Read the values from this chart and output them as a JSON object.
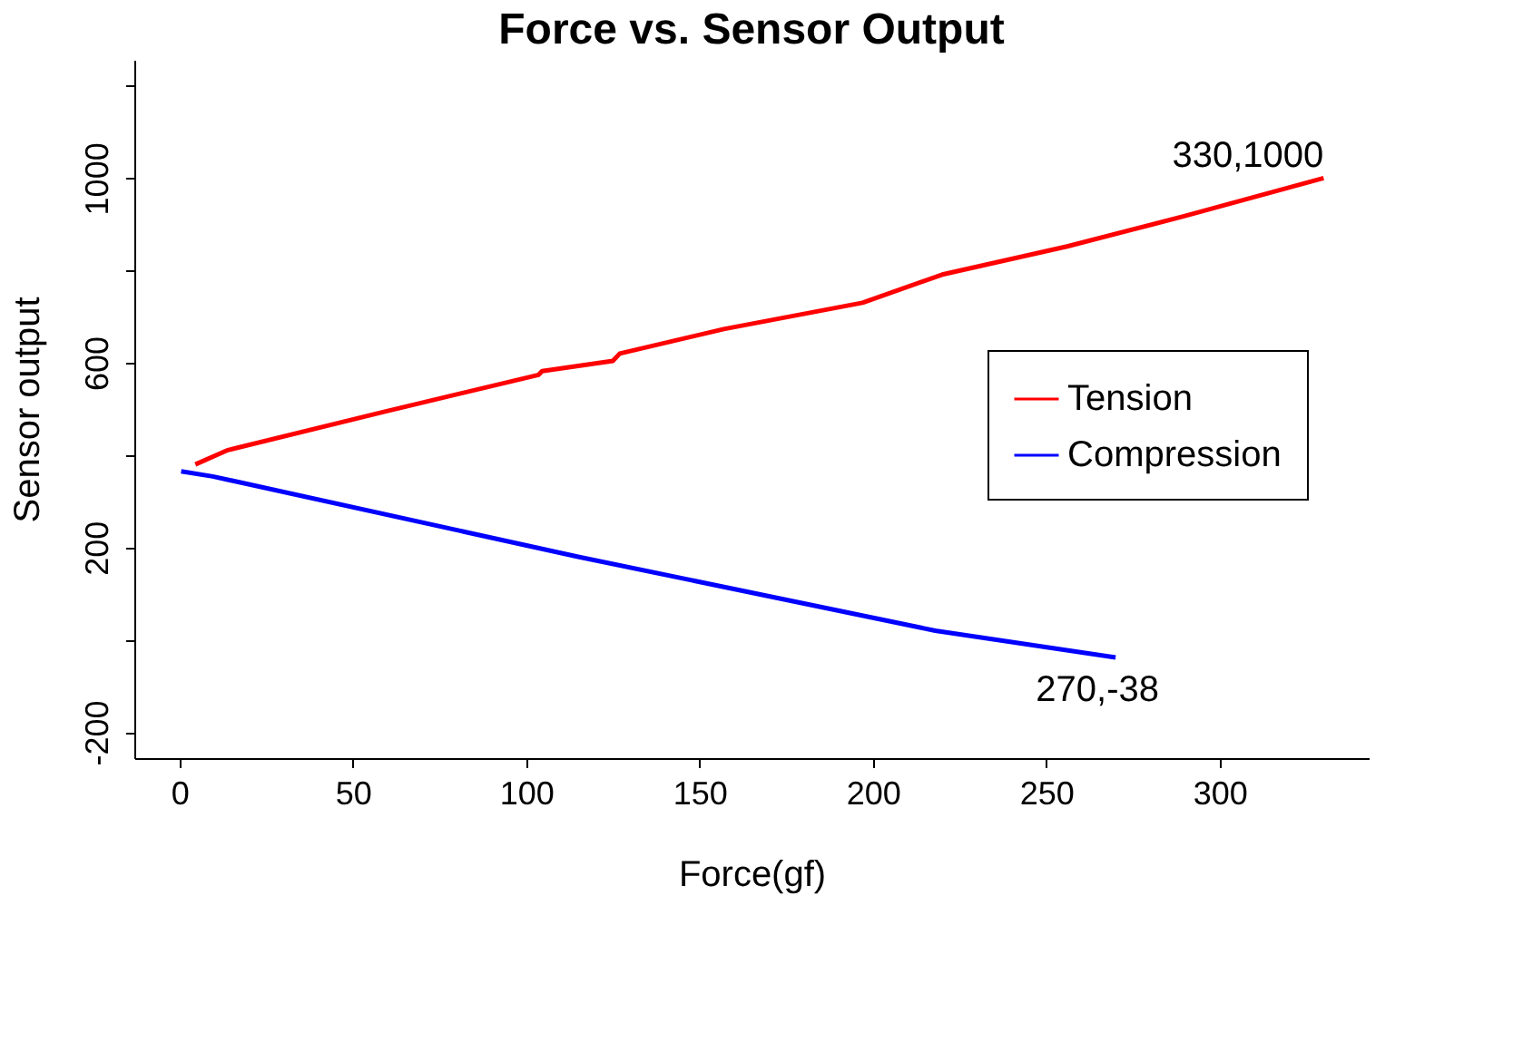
{
  "chart_data": {
    "type": "line",
    "title": "Force vs. Sensor Output",
    "xlabel": "Force(gf)",
    "ylabel": "Sensor output",
    "series": [
      {
        "name": "Tension",
        "color": "#ff0000",
        "x": [
          4.6,
          14,
          59,
          103.6,
          104.6,
          125,
          127,
          157,
          197,
          220,
          256,
          290,
          330
        ],
        "values": [
          380,
          411,
          494,
          574,
          582,
          604,
          620,
          673,
          730,
          791,
          852,
          918,
          1000
        ]
      },
      {
        "name": "Compression",
        "color": "#0000ff",
        "x": [
          0.5,
          9.6,
          115,
          218,
          270
        ],
        "values": [
          365,
          354,
          180,
          20,
          -38
        ]
      }
    ],
    "xlim": [
      -13,
      343
    ],
    "ylim": [
      -256,
      1256
    ],
    "xticks": [
      0,
      50,
      100,
      150,
      200,
      250,
      300
    ],
    "yticks": [
      -200,
      {
        "value": 0,
        "label": null
      },
      200,
      {
        "value": 400,
        "label": null
      },
      600,
      {
        "value": 800,
        "label": null
      },
      1000,
      {
        "value": 1200,
        "label": null
      }
    ],
    "annotations": [
      {
        "text": "330,1000",
        "x": 330,
        "y": 1000
      },
      {
        "text": "270,-38",
        "x": 270,
        "y": -38
      }
    ],
    "legend": "right",
    "grid": false,
    "marker": "none",
    "line_style": "solid"
  }
}
